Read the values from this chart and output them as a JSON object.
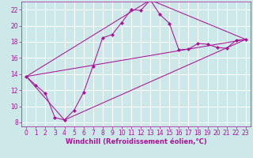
{
  "xlabel": "Windchill (Refroidissement éolien,°C)",
  "bg_color": "#cce8e8",
  "grid_color": "#ffffff",
  "line_color": "#aa1199",
  "xlim": [
    -0.5,
    23.5
  ],
  "ylim": [
    7.5,
    23.0
  ],
  "xticks": [
    0,
    1,
    2,
    3,
    4,
    5,
    6,
    7,
    8,
    9,
    10,
    11,
    12,
    13,
    14,
    15,
    16,
    17,
    18,
    19,
    20,
    21,
    22,
    23
  ],
  "yticks": [
    8,
    10,
    12,
    14,
    16,
    18,
    20,
    22
  ],
  "series1_x": [
    0,
    1,
    2,
    3,
    4,
    5,
    6,
    7,
    8,
    9,
    10,
    11,
    12,
    13,
    14,
    15,
    16,
    17,
    18,
    19,
    20,
    21,
    22,
    23
  ],
  "series1_y": [
    13.7,
    12.6,
    11.6,
    8.6,
    8.3,
    9.5,
    11.7,
    15.0,
    18.5,
    18.9,
    20.4,
    22.0,
    21.9,
    23.2,
    21.4,
    20.3,
    17.0,
    17.1,
    17.8,
    17.7,
    17.3,
    17.2,
    18.2,
    18.3
  ],
  "series2_x": [
    0,
    23
  ],
  "series2_y": [
    13.7,
    18.3
  ],
  "series3_x": [
    0,
    4,
    23
  ],
  "series3_y": [
    13.7,
    8.3,
    18.3
  ],
  "series4_x": [
    0,
    13,
    23
  ],
  "series4_y": [
    13.7,
    23.2,
    18.3
  ],
  "xlabel_fontsize": 6.0,
  "tick_fontsize": 5.5
}
